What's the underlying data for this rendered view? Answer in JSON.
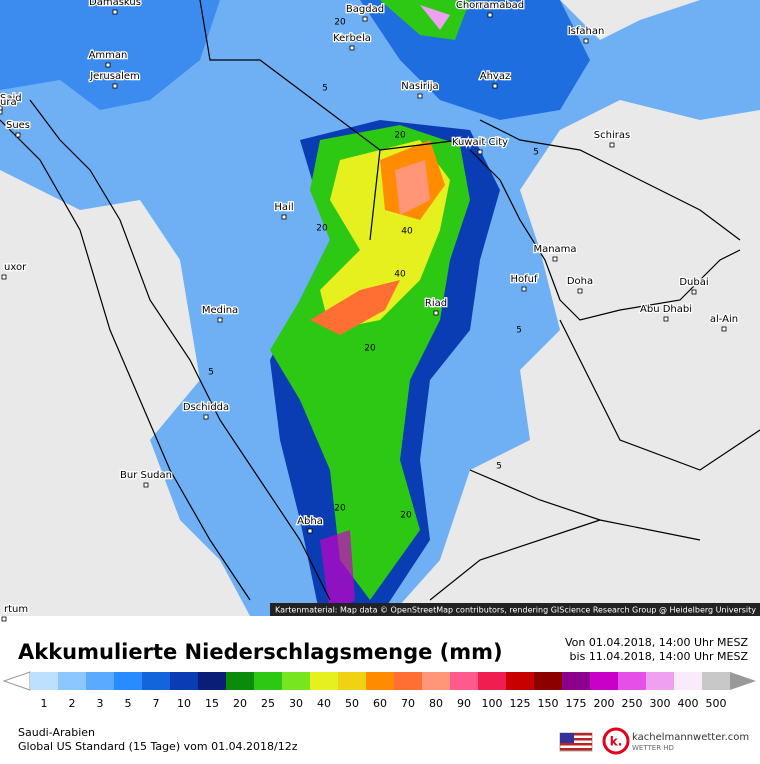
{
  "header": {
    "title": "Akkumulierte Niederschlagsmenge (mm)",
    "from": "Von 01.04.2018, 14:00 Uhr MESZ",
    "to": "bis 11.04.2018, 14:00 Uhr MESZ"
  },
  "map": {
    "attribution": "Kartenmaterial: Map data © OpenStreetMap contributors, rendering GIScience Research Group @ Heidelberg University",
    "cities": [
      "Damaskus",
      "Bagdad",
      "Chorramabad",
      "Kerbela",
      "Isfahan",
      "Amman",
      "Jerusalem",
      "Nasirija",
      "Ahvaz",
      "Said",
      "ura",
      "Sues",
      "Schiras",
      "Kuwait City",
      "Hail",
      "uxor",
      "Manama",
      "Hofuf",
      "Doha",
      "Medina",
      "Riad",
      "Dubai",
      "Abu Dhabi",
      "al-Ain",
      "Dschidda",
      "Bur Sudan",
      "Abha",
      "rtum"
    ],
    "contour_labels": [
      20,
      5,
      20,
      5,
      20,
      40,
      40,
      5,
      20,
      5,
      5,
      20,
      20
    ]
  },
  "legend": {
    "values": [
      1,
      2,
      3,
      5,
      7,
      10,
      15,
      20,
      25,
      30,
      40,
      50,
      60,
      70,
      80,
      90,
      100,
      125,
      150,
      175,
      200,
      250,
      300,
      400,
      500
    ],
    "colors": [
      "#bee0ff",
      "#8cc8ff",
      "#5aaaff",
      "#288cff",
      "#1464dc",
      "#0a3cb4",
      "#0a1e78",
      "#0a8c0a",
      "#2dc814",
      "#78e61e",
      "#e6f01e",
      "#f0d214",
      "#ff8c00",
      "#ff6e32",
      "#ff9678",
      "#ff5a8c",
      "#f01e50",
      "#c80000",
      "#8c0000",
      "#8c008c",
      "#c800c8",
      "#e650e6",
      "#f0a0f0",
      "#faebfa",
      "#c8c8c8"
    ]
  },
  "footer": {
    "region": "Saudi-Arabien",
    "model": "Global US Standard (15 Tage) vom 01.04.2018/12z",
    "logo_mark": "k.",
    "logo_name": "kachelmannwetter.com",
    "logo_sub": "WETTER HD"
  }
}
